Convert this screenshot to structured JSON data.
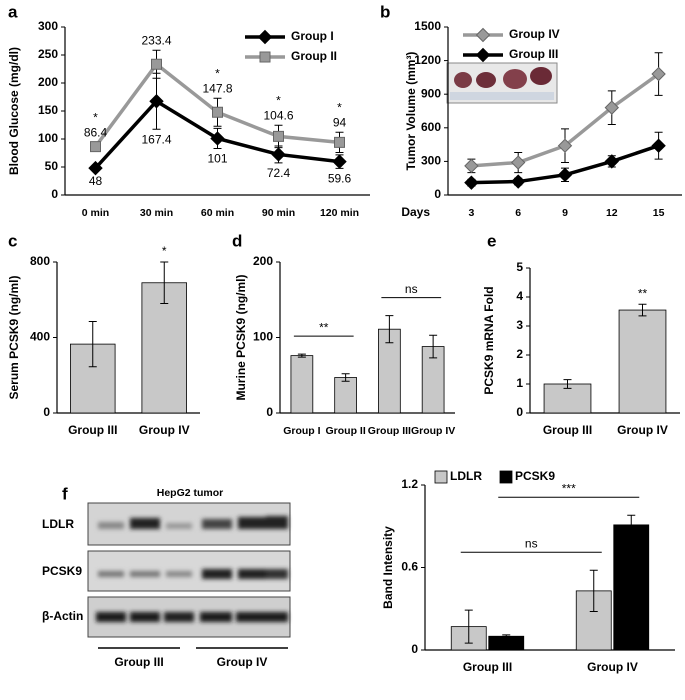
{
  "chart_data": [
    {
      "type": "line",
      "panel": "a",
      "ylabel": "Blood Glucose (mg/dl)",
      "categories": [
        "0 min",
        "30 min",
        "60 min",
        "90 min",
        "120 min"
      ],
      "series": [
        {
          "name": "Group I",
          "color": "#000000",
          "marker": "diamond",
          "values": [
            48,
            167.4,
            101,
            72.4,
            59.6
          ],
          "errors": [
            5,
            50,
            18,
            15,
            12
          ]
        },
        {
          "name": "Group II",
          "color": "#999999",
          "marker": "square",
          "values": [
            86.4,
            233.4,
            147.8,
            104.6,
            94
          ],
          "errors": [
            8,
            25,
            25,
            20,
            18
          ]
        }
      ],
      "show_values": true,
      "annotations": [
        "*",
        null,
        "*",
        "*",
        "*"
      ],
      "ylim": [
        0,
        300
      ],
      "yticks": [
        0,
        50,
        100,
        150,
        200,
        250,
        300
      ],
      "legend": "upper right"
    },
    {
      "type": "line",
      "panel": "b",
      "ylabel": "Tumor Volume (mm³)",
      "xlabel": "Days",
      "categories": [
        "3",
        "6",
        "9",
        "12",
        "15"
      ],
      "series": [
        {
          "name": "Group IV",
          "color": "#999999",
          "marker": "diamond",
          "values": [
            260,
            290,
            440,
            780,
            1080
          ],
          "errors": [
            60,
            90,
            150,
            150,
            190
          ]
        },
        {
          "name": "Group III",
          "color": "#000000",
          "marker": "diamond",
          "values": [
            110,
            120,
            180,
            300,
            440
          ],
          "errors": [
            30,
            30,
            60,
            50,
            120
          ]
        }
      ],
      "ylim": [
        0,
        1500
      ],
      "yticks": [
        0,
        300,
        600,
        900,
        1200,
        1500
      ],
      "legend": "upper left"
    },
    {
      "type": "bar",
      "panel": "c",
      "ylabel": "Serum PCSK9 (ng/ml)",
      "categories": [
        "Group III",
        "Group IV"
      ],
      "values": [
        365,
        690
      ],
      "errors": [
        120,
        110
      ],
      "color": "#c8c8c8",
      "annotations": [
        null,
        "*"
      ],
      "ylim": [
        0,
        800
      ],
      "yticks": [
        0,
        400,
        800
      ]
    },
    {
      "type": "bar",
      "panel": "d",
      "ylabel": "Murine PCSK9 (ng/ml)",
      "categories": [
        "Group I",
        "Group II",
        "Group III",
        "Group IV"
      ],
      "values": [
        76,
        47,
        111,
        88
      ],
      "errors": [
        2,
        5,
        18,
        15
      ],
      "color": "#c8c8c8",
      "brackets": [
        {
          "text": "**",
          "categories": [
            0,
            1
          ]
        },
        {
          "text": "ns",
          "categories": [
            2,
            3
          ]
        }
      ],
      "ylim": [
        0,
        200
      ],
      "yticks": [
        0,
        100,
        200
      ]
    },
    {
      "type": "bar",
      "panel": "e",
      "ylabel": "PCSK9 mRNA Fold",
      "categories": [
        "Group III",
        "Group IV"
      ],
      "values": [
        1.0,
        3.55
      ],
      "errors": [
        0.15,
        0.2
      ],
      "color": "#c8c8c8",
      "annotations": [
        null,
        "**"
      ],
      "ylim": [
        0,
        5
      ],
      "yticks": [
        0,
        1,
        2,
        3,
        4,
        5
      ]
    },
    {
      "type": "bar",
      "panel": "f",
      "ylabel": "Band Intensity",
      "categories": [
        "Group III",
        "Group IV"
      ],
      "series": [
        {
          "name": "LDLR",
          "color": "#c8c8c8",
          "values": [
            0.17,
            0.43
          ],
          "errors": [
            0.12,
            0.15
          ]
        },
        {
          "name": "PCSK9",
          "color": "#000000",
          "values": [
            0.1,
            0.91
          ],
          "errors": [
            0.01,
            0.07
          ]
        }
      ],
      "brackets": [
        {
          "text": "ns",
          "categories": [
            0,
            1
          ],
          "series": 0
        },
        {
          "text": "***",
          "categories": [
            0,
            1
          ],
          "series": 1
        }
      ],
      "ylim": [
        0,
        1.2
      ],
      "yticks": [
        0,
        0.6,
        1.2
      ],
      "legend": "top"
    }
  ],
  "blot": {
    "title": "HepG2 tumor",
    "rows": [
      "LDLR",
      "PCSK9",
      "β-Actin"
    ],
    "groups": [
      "Group III",
      "Group IV"
    ]
  }
}
